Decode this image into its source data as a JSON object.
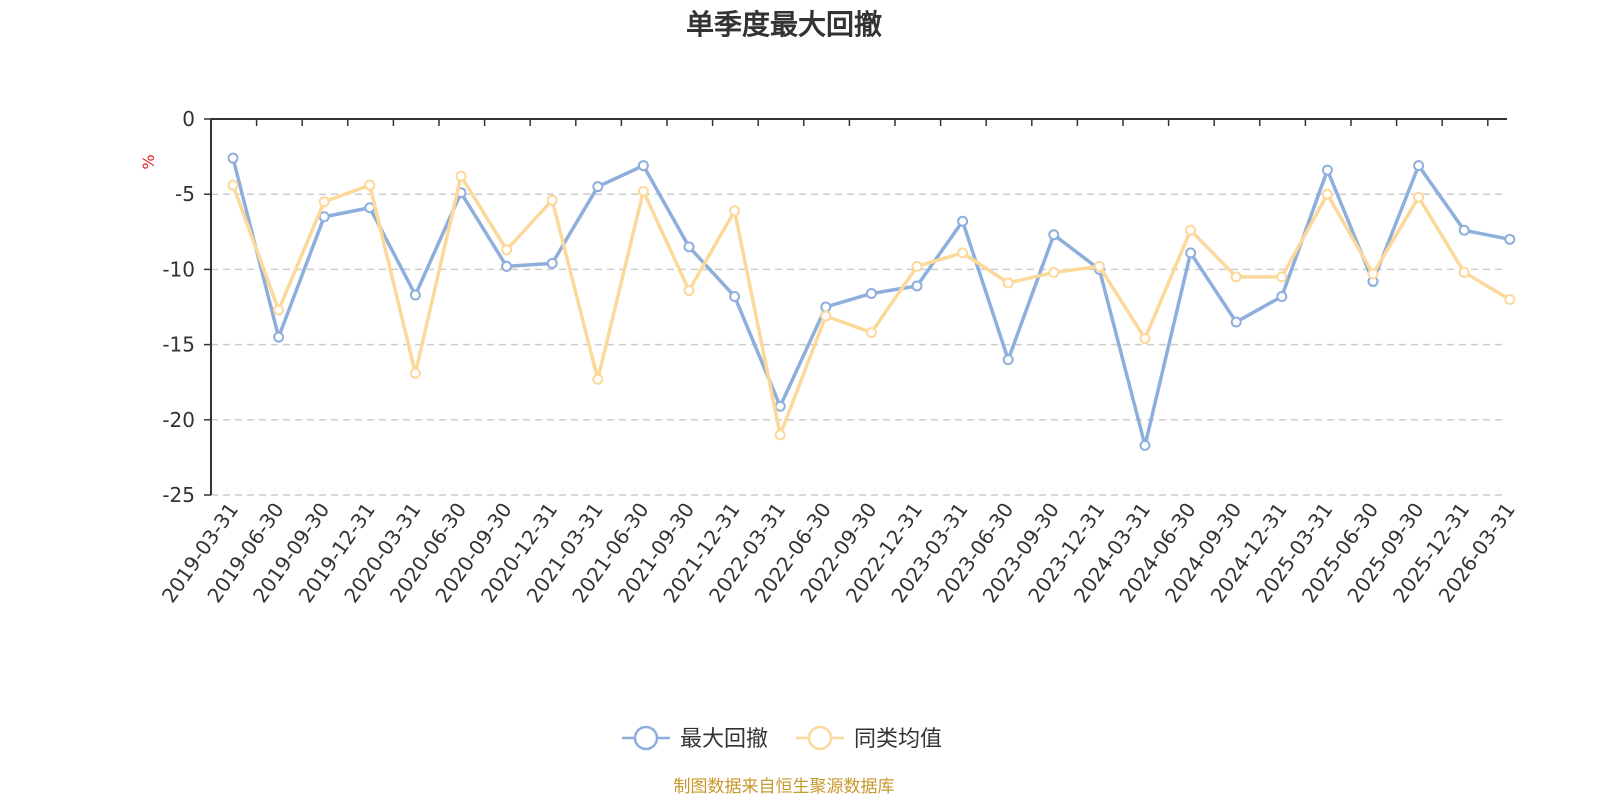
{
  "chart_data": {
    "type": "line",
    "title": "单季度最大回撤",
    "ylabel": "%",
    "ylim": [
      -25,
      0
    ],
    "yticks": [
      0,
      -5,
      -10,
      -15,
      -20,
      -25
    ],
    "grid": true,
    "legend_position": "bottom-center",
    "categories": [
      "2019-03-31",
      "2019-06-30",
      "2019-09-30",
      "2019-12-31",
      "2020-03-31",
      "2020-06-30",
      "2020-09-30",
      "2020-12-31",
      "2021-03-31",
      "2021-06-30",
      "2021-09-30",
      "2021-12-31",
      "2022-03-31",
      "2022-06-30",
      "2022-09-30",
      "2022-12-31",
      "2023-03-31",
      "2023-06-30",
      "2023-09-30",
      "2023-12-31",
      "2024-03-31",
      "2024-06-30",
      "2024-09-30",
      "2024-12-31",
      "2025-03-31",
      "2025-06-30",
      "2025-09-30",
      "2025-12-31",
      "2026-03-31"
    ],
    "series": [
      {
        "name": "最大回撤",
        "color": "#8eaedc",
        "values": [
          -2.6,
          -14.5,
          -6.5,
          -5.9,
          -11.7,
          -4.9,
          -9.8,
          -9.6,
          -4.5,
          -3.1,
          -8.5,
          -11.8,
          -19.1,
          -12.5,
          -11.6,
          -11.1,
          -6.8,
          -16.0,
          -7.7,
          -10.0,
          -21.7,
          -8.9,
          -13.5,
          -11.8,
          -3.4,
          -10.8,
          -3.1,
          -7.4,
          -8.0
        ]
      },
      {
        "name": "同类均值",
        "color": "#fcd89a",
        "values": [
          -4.4,
          -12.7,
          -5.5,
          -4.4,
          -16.9,
          -3.8,
          -8.7,
          -5.4,
          -17.3,
          -4.8,
          -11.4,
          -6.1,
          -21.0,
          -13.1,
          -14.2,
          -9.8,
          -8.9,
          -10.9,
          -10.2,
          -9.8,
          -14.6,
          -7.4,
          -10.5,
          -10.5,
          -5.0,
          -10.3,
          -5.2,
          -10.2,
          -12.0
        ]
      }
    ],
    "source": "制图数据来自恒生聚源数据库",
    "colors": {
      "axis": "#333333",
      "grid": "#cccccc",
      "unit": "#e02020",
      "source": "#c8982e"
    }
  }
}
